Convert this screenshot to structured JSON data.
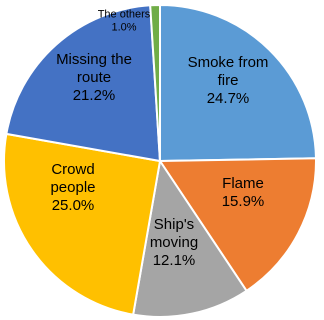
{
  "chart_data": {
    "type": "pie",
    "start": "top",
    "direction": "clockwise",
    "slices": [
      {
        "label_lines": [
          "Smoke from",
          "fire"
        ],
        "value_text": "24.7%",
        "value": 24.7,
        "color": "#5b9bd5"
      },
      {
        "label_lines": [
          "Flame"
        ],
        "value_text": "15.9%",
        "value": 15.9,
        "color": "#ed7d31"
      },
      {
        "label_lines": [
          "Ship's",
          "moving"
        ],
        "value_text": "12.1%",
        "value": 12.1,
        "color": "#a5a5a5"
      },
      {
        "label_lines": [
          "Crowd",
          "people"
        ],
        "value_text": "25.0%",
        "value": 25.0,
        "color": "#ffc000"
      },
      {
        "label_lines": [
          "Missing the",
          "route"
        ],
        "value_text": "21.2%",
        "value": 21.2,
        "color": "#4472c4"
      },
      {
        "label_lines": [
          "The others"
        ],
        "value_text": "1.0%",
        "value": 1.0,
        "color": "#70ad47"
      }
    ]
  }
}
